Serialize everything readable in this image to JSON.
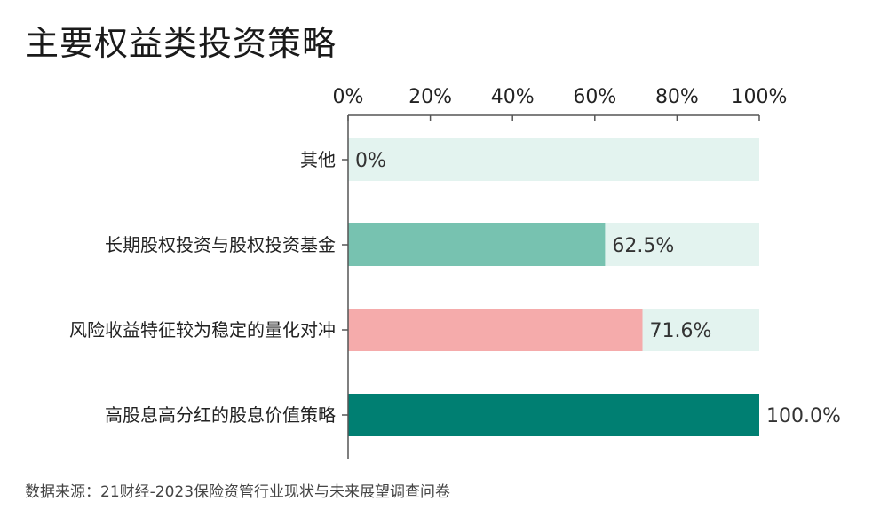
{
  "title": "主要权益类投资策略",
  "source": "数据来源：21财经-2023保险资管行业现状与未来展望调查问卷",
  "colors": {
    "track": "#e3f3ef",
    "axis": "#555555",
    "label": "#222222"
  },
  "chart_data": {
    "type": "bar",
    "orientation": "horizontal",
    "categories": [
      "其他",
      "长期股权投资与股权投资基金",
      "风险收益特征较为稳定的量化对冲",
      "高股息高分红的股息价值策略"
    ],
    "values": [
      0,
      62.5,
      71.6,
      100.0
    ],
    "value_labels": [
      "0%",
      "62.5%",
      "71.6%",
      "100.0%"
    ],
    "bar_colors": [
      "#e3f3ef",
      "#77c2b0",
      "#f5abab",
      "#007f72"
    ],
    "xlim": [
      0,
      100
    ],
    "x_ticks": [
      0,
      20,
      40,
      60,
      80,
      100
    ],
    "x_tick_labels": [
      "0%",
      "20%",
      "40%",
      "60%",
      "80%",
      "100%"
    ],
    "axis_position": "top",
    "grid": false,
    "legend": "none"
  }
}
